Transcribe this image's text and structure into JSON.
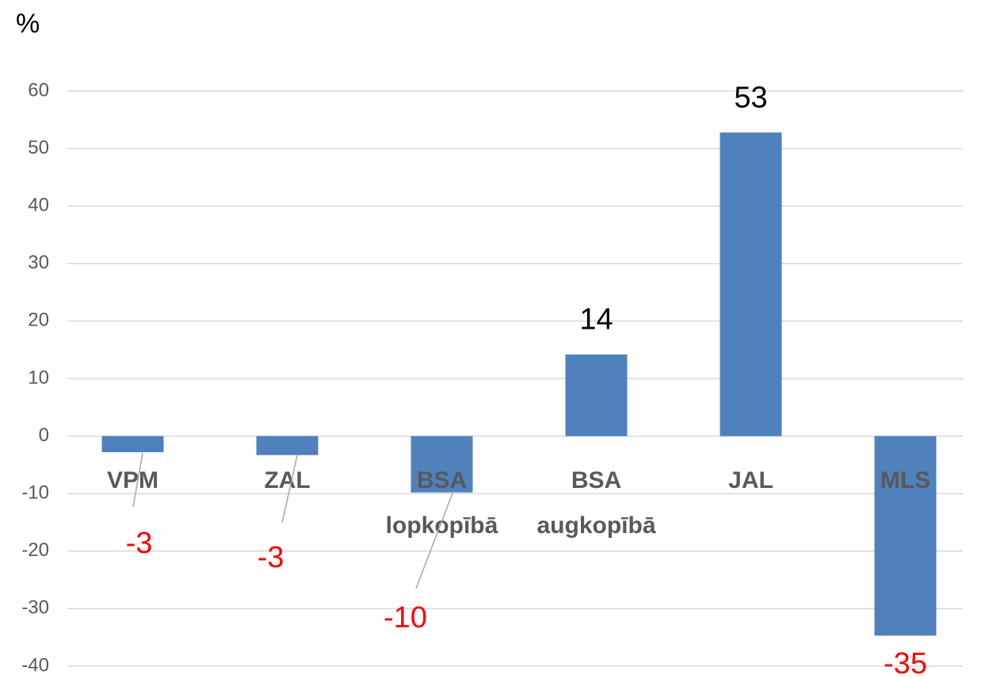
{
  "chart_data": {
    "type": "bar",
    "y_label": "%",
    "categories": [
      "VPM",
      "ZAL",
      "BSA lopkopībā",
      "BSA augkopībā",
      "JAL",
      "MLS"
    ],
    "values": [
      -2.8,
      -3.3,
      -9.8,
      14.2,
      52.8,
      -34.7
    ],
    "value_labels": [
      "-3",
      "-3",
      "-10",
      "14",
      "53",
      "-35"
    ],
    "color": "#4f81bd",
    "ylim": [
      -40,
      60
    ],
    "yticks": [
      -40,
      -30,
      -20,
      -10,
      0,
      10,
      20,
      30,
      40,
      50,
      60
    ],
    "grid": true
  }
}
